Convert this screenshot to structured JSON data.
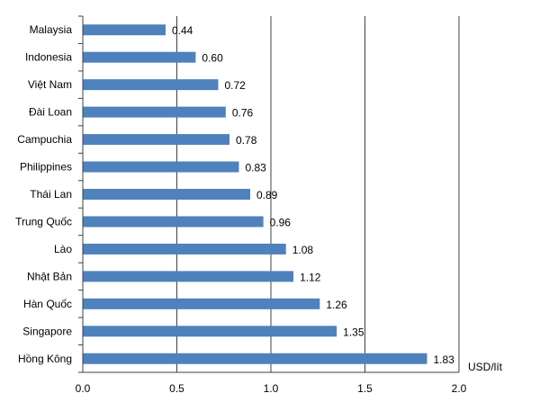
{
  "chart_data": {
    "type": "bar",
    "orientation": "horizontal",
    "categories": [
      "Malaysia",
      "Indonesia",
      "Việt Nam",
      "Đài Loan",
      "Campuchia",
      "Philippines",
      "Thái Lan",
      "Trung Quốc",
      "Lào",
      "Nhật Bản",
      "Hàn Quốc",
      "Singapore",
      "Hồng Kông"
    ],
    "values": [
      0.44,
      0.6,
      0.72,
      0.76,
      0.78,
      0.83,
      0.89,
      0.96,
      1.08,
      1.12,
      1.26,
      1.35,
      1.83
    ],
    "value_labels": [
      "0.44",
      "0.60",
      "0.72",
      "0.76",
      "0.78",
      "0.83",
      "0.89",
      "0.96",
      "1.08",
      "1.12",
      "1.26",
      "1.35",
      "1.83"
    ],
    "xlim": [
      0,
      2.0
    ],
    "xticks": [
      0,
      0.5,
      1.0,
      1.5,
      2.0
    ],
    "xtick_labels": [
      "0.0",
      "0.5",
      "1.0",
      "1.5",
      "2.0"
    ],
    "x_unit_label": "USD/lít",
    "grid": "vertical",
    "legend": "none",
    "bar_color": "#4f81bd",
    "grid_color": "#404040"
  }
}
